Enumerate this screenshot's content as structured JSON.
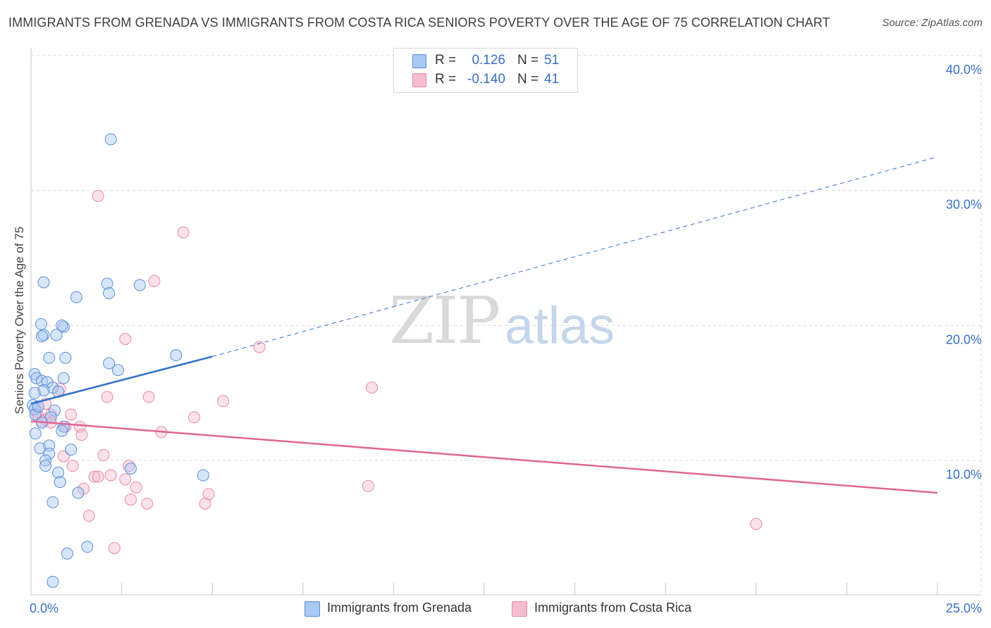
{
  "title": "IMMIGRANTS FROM GRENADA VS IMMIGRANTS FROM COSTA RICA SENIORS POVERTY OVER THE AGE OF 75 CORRELATION CHART",
  "source": "Source: ZipAtlas.com",
  "watermark": {
    "zip": "ZIP",
    "atlas": "atlas"
  },
  "legend": {
    "rows": [
      {
        "r_label": "R =",
        "r_value": "0.126",
        "n_label": "N =",
        "n_value": "51"
      },
      {
        "r_label": "R =",
        "r_value": "-0.140",
        "n_label": "N =",
        "n_value": "41"
      }
    ]
  },
  "colors": {
    "grenada_fill": "#a9c8f2",
    "grenada_stroke": "#5b8fd6",
    "grenada_line": "#3070c8",
    "costarica_fill": "#f6bdd0",
    "costarica_stroke": "#e58aab",
    "costarica_line": "#e0678f",
    "value_blue": "#3a6fc9",
    "grid": "#dddddd"
  },
  "chart_data": {
    "type": "scatter",
    "title": "IMMIGRANTS FROM GRENADA VS IMMIGRANTS FROM COSTA RICA SENIORS POVERTY OVER THE AGE OF 75 CORRELATION CHART",
    "xlabel": "",
    "ylabel": "Seniors Poverty Over the Age of 75",
    "xlim": [
      0,
      25
    ],
    "ylim": [
      0,
      42
    ],
    "x_tick_labels": [
      "0.0%",
      "25.0%"
    ],
    "y_ticks": [
      10,
      20,
      30,
      40
    ],
    "y_tick_labels": [
      "10.0%",
      "20.0%",
      "30.0%",
      "40.0%"
    ],
    "grid": true,
    "legend_position": "top-center",
    "series": [
      {
        "name": "Immigrants from Grenada",
        "r": 0.126,
        "n": 51,
        "trend": {
          "x0": 0,
          "y0": 14.2,
          "x1": 5,
          "y1": 17.7,
          "dashed_to_x": 25,
          "dashed_to_y": 32.5
        },
        "points": [
          [
            2.2,
            33.8
          ],
          [
            0.35,
            23.2
          ],
          [
            2.1,
            23.1
          ],
          [
            3.0,
            23.0
          ],
          [
            1.25,
            22.1
          ],
          [
            2.15,
            22.4
          ],
          [
            0.28,
            20.1
          ],
          [
            0.9,
            19.9
          ],
          [
            0.85,
            20.0
          ],
          [
            0.35,
            19.3
          ],
          [
            0.3,
            19.2
          ],
          [
            0.7,
            19.3
          ],
          [
            0.5,
            17.6
          ],
          [
            0.95,
            17.6
          ],
          [
            4.0,
            17.8
          ],
          [
            2.15,
            17.2
          ],
          [
            2.4,
            16.7
          ],
          [
            0.1,
            16.4
          ],
          [
            0.15,
            16.1
          ],
          [
            0.3,
            15.9
          ],
          [
            0.45,
            15.8
          ],
          [
            0.9,
            16.1
          ],
          [
            0.6,
            15.4
          ],
          [
            0.35,
            15.2
          ],
          [
            0.75,
            15.1
          ],
          [
            0.1,
            15.0
          ],
          [
            0.05,
            14.1
          ],
          [
            0.1,
            13.8
          ],
          [
            0.65,
            13.7
          ],
          [
            0.12,
            13.4
          ],
          [
            0.9,
            12.5
          ],
          [
            0.85,
            12.2
          ],
          [
            0.12,
            12.0
          ],
          [
            0.5,
            11.1
          ],
          [
            0.25,
            10.9
          ],
          [
            1.1,
            10.8
          ],
          [
            0.5,
            10.5
          ],
          [
            0.4,
            10.0
          ],
          [
            0.4,
            9.6
          ],
          [
            2.75,
            9.4
          ],
          [
            0.75,
            9.1
          ],
          [
            4.75,
            8.9
          ],
          [
            0.8,
            8.4
          ],
          [
            1.3,
            7.6
          ],
          [
            0.6,
            6.9
          ],
          [
            1.55,
            3.6
          ],
          [
            1.0,
            3.1
          ],
          [
            0.6,
            1.0
          ],
          [
            0.2,
            14.0
          ],
          [
            0.55,
            13.2
          ],
          [
            0.3,
            12.8
          ]
        ]
      },
      {
        "name": "Immigrants from Costa Rica",
        "r": -0.14,
        "n": 41,
        "trend": {
          "x0": 0,
          "y0": 12.9,
          "x1": 25,
          "y1": 7.6
        },
        "points": [
          [
            1.85,
            29.6
          ],
          [
            4.2,
            26.9
          ],
          [
            3.4,
            23.3
          ],
          [
            2.6,
            19.0
          ],
          [
            6.3,
            18.4
          ],
          [
            9.4,
            15.4
          ],
          [
            0.8,
            15.3
          ],
          [
            3.25,
            14.7
          ],
          [
            2.1,
            14.7
          ],
          [
            5.3,
            14.4
          ],
          [
            0.4,
            14.2
          ],
          [
            0.15,
            13.6
          ],
          [
            0.2,
            13.3
          ],
          [
            0.55,
            13.4
          ],
          [
            1.1,
            13.4
          ],
          [
            4.5,
            13.2
          ],
          [
            0.4,
            13.0
          ],
          [
            0.3,
            12.9
          ],
          [
            0.55,
            12.8
          ],
          [
            1.35,
            12.5
          ],
          [
            0.95,
            12.5
          ],
          [
            1.4,
            11.9
          ],
          [
            3.6,
            12.1
          ],
          [
            2.0,
            10.4
          ],
          [
            0.9,
            10.3
          ],
          [
            1.15,
            9.6
          ],
          [
            2.7,
            9.6
          ],
          [
            2.2,
            8.9
          ],
          [
            1.75,
            8.8
          ],
          [
            1.85,
            8.8
          ],
          [
            2.6,
            8.6
          ],
          [
            2.9,
            8.0
          ],
          [
            1.45,
            7.9
          ],
          [
            9.3,
            8.1
          ],
          [
            4.9,
            7.5
          ],
          [
            2.75,
            7.1
          ],
          [
            3.2,
            6.8
          ],
          [
            4.8,
            6.8
          ],
          [
            1.6,
            5.9
          ],
          [
            2.3,
            3.5
          ],
          [
            20.0,
            5.3
          ]
        ]
      }
    ]
  },
  "bottom_legend": {
    "grenada_label": "Immigrants from Grenada",
    "costarica_label": "Immigrants from Costa Rica"
  }
}
